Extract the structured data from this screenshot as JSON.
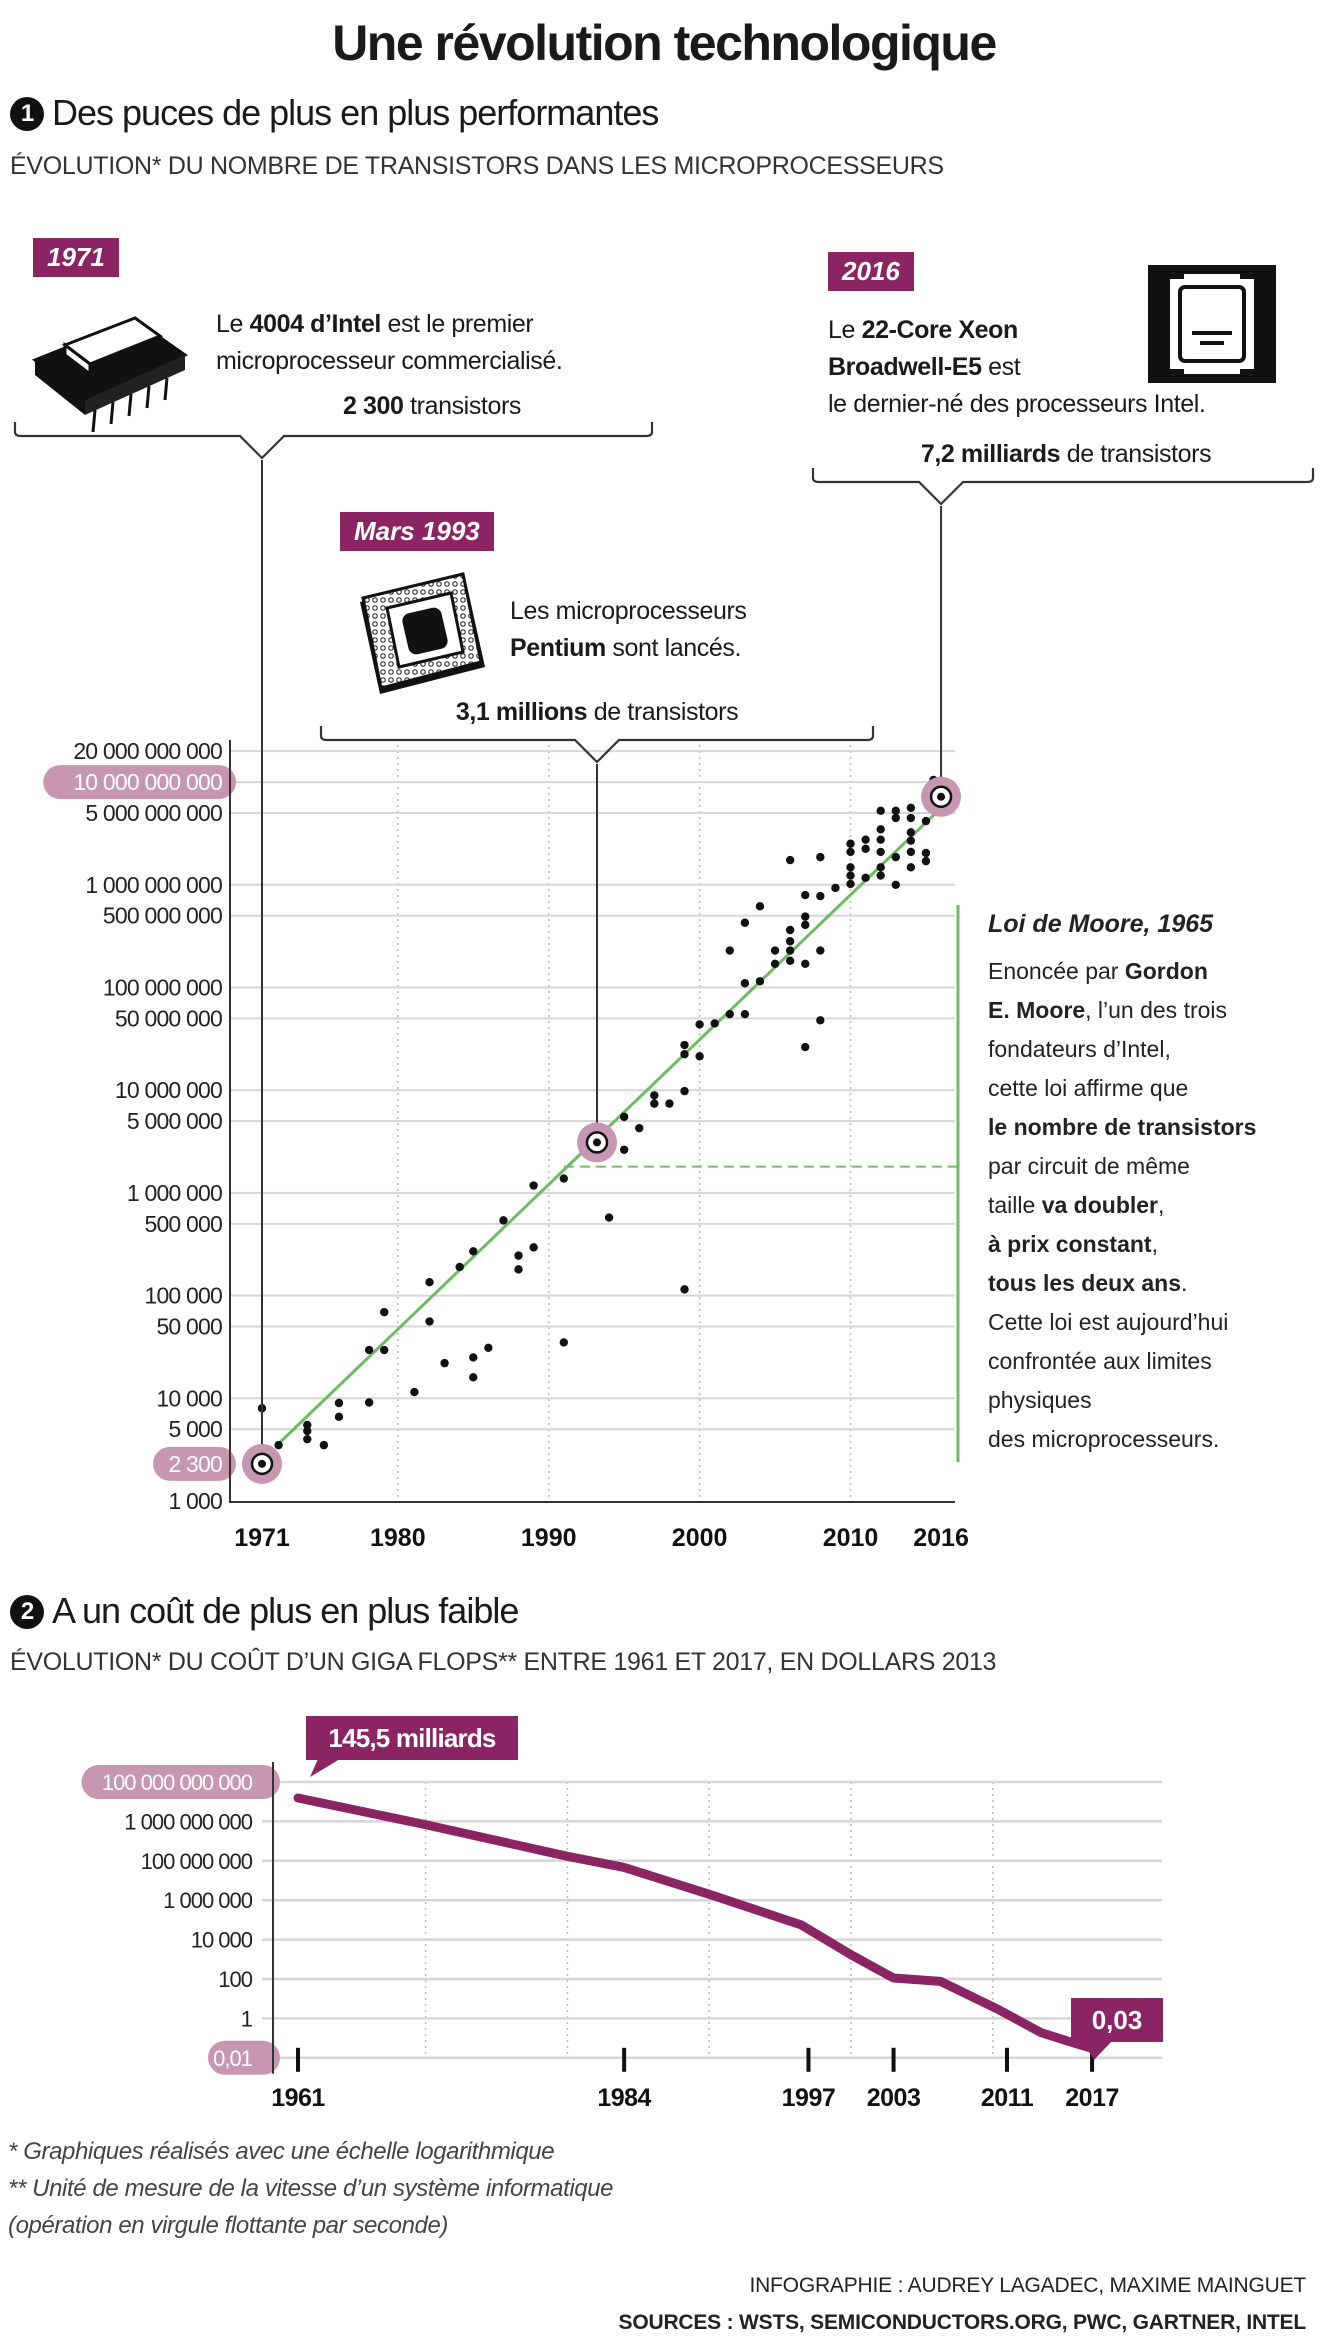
{
  "title": "Une révolution technologique",
  "section1": {
    "number": "1",
    "heading": "Des puces de plus en plus performantes",
    "subtitle": "ÉVOLUTION* DU NOMBRE DE TRANSISTORS DANS LES MICROPROCESSEURS",
    "callouts": [
      {
        "tag": "1971",
        "icon": "dip-chip-icon",
        "lines": [
          [
            {
              "t": "Le "
            },
            {
              "t": "4004 d’Intel",
              "b": true
            },
            {
              "t": " est le premier"
            }
          ],
          [
            {
              "t": "microprocesseur commercialisé."
            }
          ]
        ],
        "count": [
          {
            "t": "2 300",
            "b": true
          },
          {
            "t": " transistors"
          }
        ]
      },
      {
        "tag": "Mars 1993",
        "icon": "pentium-chip-icon",
        "lines": [
          [
            {
              "t": "Les microprocesseurs"
            }
          ],
          [
            {
              "t": "Pentium",
              "b": true
            },
            {
              "t": " sont lancés."
            }
          ]
        ],
        "count": [
          {
            "t": "3,1 millions",
            "b": true
          },
          {
            "t": " de transistors"
          }
        ]
      },
      {
        "tag": "2016",
        "icon": "xeon-chip-icon",
        "lines": [
          [
            {
              "t": "Le "
            },
            {
              "t": "22-Core Xeon",
              "b": true
            }
          ],
          [
            {
              "t": "Broadwell-E5",
              "b": true
            },
            {
              "t": " est"
            }
          ],
          [
            {
              "t": "le dernier-né des processeurs Intel."
            }
          ]
        ],
        "count": [
          {
            "t": "7,2 milliards",
            "b": true
          },
          {
            "t": " de transistors"
          }
        ]
      }
    ],
    "moore": {
      "title": "Loi de Moore, 1965",
      "lines": [
        [
          {
            "t": "Enoncée par "
          },
          {
            "t": "Gordon",
            "b": true
          }
        ],
        [
          {
            "t": "E. Moore",
            "b": true
          },
          {
            "t": ", l’un des trois"
          }
        ],
        [
          {
            "t": "fondateurs d’Intel,"
          }
        ],
        [
          {
            "t": "cette loi affirme que"
          }
        ],
        [
          {
            "t": "le nombre de transistors",
            "b": true
          }
        ],
        [
          {
            "t": "par circuit de même"
          }
        ],
        [
          {
            "t": "taille  "
          },
          {
            "t": "va doubler",
            "b": true
          },
          {
            "t": ","
          }
        ],
        [
          {
            "t": "à prix constant",
            "b": true
          },
          {
            "t": ","
          }
        ],
        [
          {
            "t": "tous les deux ans",
            "b": true
          },
          {
            "t": "."
          }
        ],
        [
          {
            "t": "Cette loi est aujourd’hui"
          }
        ],
        [
          {
            "t": "confrontée aux limites"
          }
        ],
        [
          {
            "t": "physiques"
          }
        ],
        [
          {
            "t": "des microprocesseurs."
          }
        ]
      ]
    }
  },
  "section2": {
    "number": "2",
    "heading": "A un coût de plus en plus faible",
    "subtitle": "ÉVOLUTION* DU COÛT D’UN GIGA FLOPS** ENTRE 1961 ET 2017, EN DOLLARS 2013"
  },
  "footnotes": [
    "* Graphiques réalisés avec une échelle logarithmique",
    "** Unité de mesure de la vitesse d’un système informatique",
    "(opération en virgule flottante par seconde)"
  ],
  "credits": [
    "INFOGRAPHIE : AUDREY LAGADEC, MAXIME MAINGUET",
    "SOURCES : WSTS, SEMICONDUCTORS.ORG, PWC, GARTNER, INTEL"
  ],
  "colors": {
    "accent": "#8b2463",
    "pill": "#c797b2",
    "trend": "#6cbd62",
    "grid": "#d6d6d6",
    "dot": "#111111"
  },
  "chart_data": [
    {
      "type": "scatter",
      "title": "Nombre de transistors dans les microprocesseurs",
      "yscale": "log",
      "ylim": [
        1000,
        20000000000
      ],
      "xlim": [
        1971,
        2016
      ],
      "yticks": [
        {
          "v": 20000000000,
          "label": "20 000 000 000"
        },
        {
          "v": 10000000000,
          "label": "10 000 000 000",
          "highlight": true
        },
        {
          "v": 5000000000,
          "label": "5 000 000 000"
        },
        {
          "v": 1000000000,
          "label": "1 000 000 000"
        },
        {
          "v": 500000000,
          "label": "500 000 000"
        },
        {
          "v": 100000000,
          "label": "100 000 000"
        },
        {
          "v": 50000000,
          "label": "50 000 000"
        },
        {
          "v": 10000000,
          "label": "10 000 000"
        },
        {
          "v": 5000000,
          "label": "5 000 000"
        },
        {
          "v": 1000000,
          "label": "1 000 000"
        },
        {
          "v": 500000,
          "label": "500 000"
        },
        {
          "v": 100000,
          "label": "100 000"
        },
        {
          "v": 50000,
          "label": "50 000"
        },
        {
          "v": 10000,
          "label": "10 000"
        },
        {
          "v": 5000,
          "label": "5 000"
        },
        {
          "v": 2300,
          "label": "2 300",
          "highlight": true,
          "nogrid": true
        },
        {
          "v": 1000,
          "label": "1 000"
        }
      ],
      "xticks": [
        {
          "v": 1971,
          "label": "1971"
        },
        {
          "v": 1980,
          "label": "1980"
        },
        {
          "v": 1990,
          "label": "1990"
        },
        {
          "v": 2000,
          "label": "2000"
        },
        {
          "v": 2010,
          "label": "2010"
        },
        {
          "v": 2016,
          "label": "2016"
        }
      ],
      "xgrid": [
        1980,
        1990,
        2000,
        2010
      ],
      "highlights": [
        [
          1971,
          2300
        ],
        [
          1993.2,
          3100000
        ],
        [
          2016,
          7200000000
        ]
      ],
      "trend": {
        "name": "Loi de Moore",
        "points": [
          [
            1972,
            3500
          ],
          [
            2016,
            5600000000
          ]
        ]
      },
      "moore_reference": {
        "value": 1800000,
        "from": 1991,
        "to": 2017.1
      },
      "points": [
        [
          1971,
          8000
        ],
        [
          1972.1,
          3500
        ],
        [
          1974,
          5500
        ],
        [
          1974,
          4800
        ],
        [
          1974,
          4000
        ],
        [
          1975.1,
          3500
        ],
        [
          1976.1,
          9000
        ],
        [
          1976.1,
          6600
        ],
        [
          1978.1,
          9100
        ],
        [
          1978.1,
          29500
        ],
        [
          1979.1,
          29500
        ],
        [
          1979.1,
          69000
        ],
        [
          1981.1,
          11500
        ],
        [
          1982.1,
          135000
        ],
        [
          1982.1,
          56000
        ],
        [
          1983.1,
          22000
        ],
        [
          1984.1,
          190000
        ],
        [
          1985,
          270000
        ],
        [
          1985,
          25000
        ],
        [
          1985,
          16000
        ],
        [
          1986,
          31000
        ],
        [
          1987,
          540000
        ],
        [
          1988,
          245000
        ],
        [
          1988,
          180000
        ],
        [
          1989,
          1180000
        ],
        [
          1989,
          295000
        ],
        [
          1991,
          1380000
        ],
        [
          1991,
          35000
        ],
        [
          1994,
          575000
        ],
        [
          1995,
          5500000
        ],
        [
          1995,
          2630000
        ],
        [
          1996,
          4270000
        ],
        [
          1997,
          8900000
        ],
        [
          1997,
          7400000
        ],
        [
          1998,
          7400000
        ],
        [
          1999,
          9800000
        ],
        [
          1999,
          115000
        ],
        [
          1999,
          27500000
        ],
        [
          1999,
          22400000
        ],
        [
          2000,
          21400000
        ],
        [
          2000,
          43700000
        ],
        [
          2001,
          44700000
        ],
        [
          2002,
          55000000
        ],
        [
          2002,
          229000000
        ],
        [
          2003,
          55000000
        ],
        [
          2003,
          110000000
        ],
        [
          2003,
          427000000
        ],
        [
          2004,
          115000000
        ],
        [
          2004,
          617000000
        ],
        [
          2005,
          229000000
        ],
        [
          2005,
          170000000
        ],
        [
          2006,
          1740000000
        ],
        [
          2006,
          363000000
        ],
        [
          2006,
          282000000
        ],
        [
          2006,
          229000000
        ],
        [
          2006,
          182000000
        ],
        [
          2007,
          794000000
        ],
        [
          2007,
          490000000
        ],
        [
          2007,
          407000000
        ],
        [
          2007,
          170000000
        ],
        [
          2007,
          26300000
        ],
        [
          2008,
          1860000000
        ],
        [
          2008,
          776000000
        ],
        [
          2008,
          229000000
        ],
        [
          2008,
          47900000
        ],
        [
          2009,
          933000000
        ],
        [
          2010,
          2510000000
        ],
        [
          2010,
          2090000000
        ],
        [
          2010,
          1480000000
        ],
        [
          2010,
          1230000000
        ],
        [
          2010,
          1020000000
        ],
        [
          2011,
          2750000000
        ],
        [
          2011,
          2240000000
        ],
        [
          2011,
          1170000000
        ],
        [
          2012,
          5250000000
        ],
        [
          2012,
          3470000000
        ],
        [
          2012,
          2750000000
        ],
        [
          2012,
          2090000000
        ],
        [
          2012,
          1480000000
        ],
        [
          2012,
          1230000000
        ],
        [
          2013,
          5250000000
        ],
        [
          2013,
          4470000000
        ],
        [
          2013,
          1860000000
        ],
        [
          2013,
          1000000000
        ],
        [
          2014,
          5620000000
        ],
        [
          2014,
          4470000000
        ],
        [
          2014,
          3240000000
        ],
        [
          2014,
          2690000000
        ],
        [
          2014,
          2090000000
        ],
        [
          2014,
          1480000000
        ],
        [
          2015,
          2040000000
        ],
        [
          2015,
          1700000000
        ],
        [
          2015,
          4170000000
        ],
        [
          2015.5,
          10500000000
        ],
        [
          2015.5,
          7600000000
        ]
      ]
    },
    {
      "type": "line",
      "title": "Coût d’un giga flops, en dollars 2013",
      "yscale": "log",
      "xlim": [
        1961,
        2017
      ],
      "yticks": [
        {
          "v": 100000000000,
          "label": "100 000 000 000",
          "highlight": true
        },
        {
          "v": 1000000000,
          "label": "1 000 000 000"
        },
        {
          "v": 100000000,
          "label": "100 000 000"
        },
        {
          "v": 1000000,
          "label": "1 000 000"
        },
        {
          "v": 10000,
          "label": "10 000"
        },
        {
          "v": 100,
          "label": "100"
        },
        {
          "v": 1,
          "label": "1"
        },
        {
          "v": 0.01,
          "label": "0,01",
          "highlight": true
        }
      ],
      "xticks": [
        {
          "v": 1961,
          "label": "1961"
        },
        {
          "v": 1984,
          "label": "1984"
        },
        {
          "v": 1997,
          "label": "1997"
        },
        {
          "v": 2003,
          "label": "2003"
        },
        {
          "v": 2011,
          "label": "2011"
        },
        {
          "v": 2017,
          "label": "2017"
        }
      ],
      "xgrid": [
        1970,
        1980,
        1990,
        2000,
        2010
      ],
      "series": [
        {
          "name": "Coût d’un GFLOPS",
          "points": [
            [
              1961,
              145500000000
            ],
            [
              1969.9,
              840000000
            ],
            [
              1980,
              130000000
            ],
            [
              1984,
              46000000
            ],
            [
              1990.2,
              1800000
            ],
            [
              1996.5,
              55000
            ],
            [
              2000,
              1700
            ],
            [
              2003,
              112
            ],
            [
              2006.3,
              76
            ],
            [
              2010.4,
              2.8
            ],
            [
              2013.4,
              0.19
            ],
            [
              2015.2,
              0.074
            ],
            [
              2017,
              0.03
            ]
          ]
        }
      ],
      "annotations": [
        {
          "x": 1961,
          "label": "145,5 milliards"
        },
        {
          "x": 2017,
          "label": "0,03"
        }
      ]
    }
  ]
}
